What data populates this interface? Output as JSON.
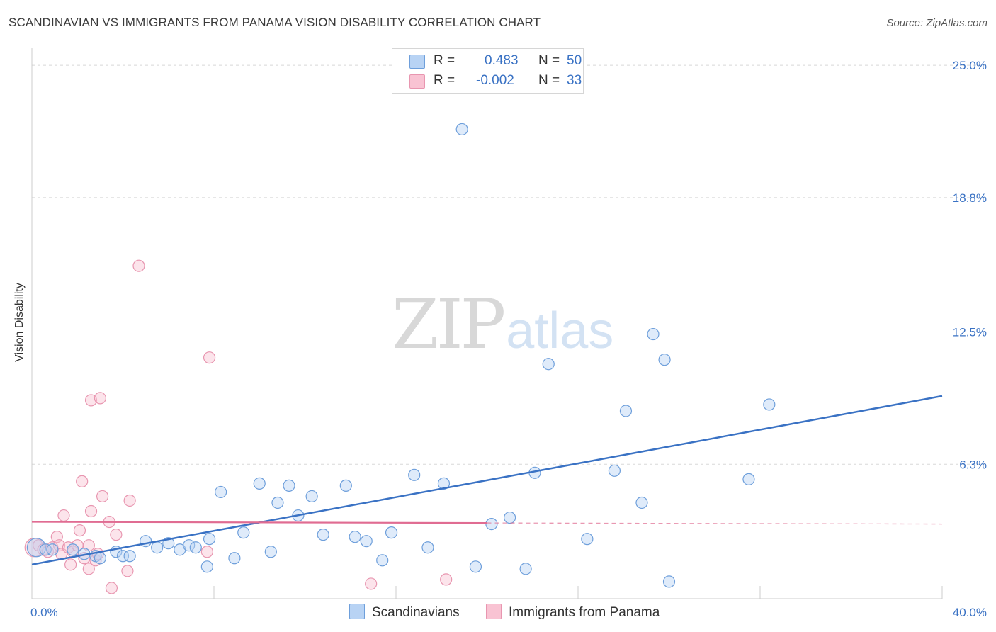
{
  "title": "SCANDINAVIAN VS IMMIGRANTS FROM PANAMA VISION DISABILITY CORRELATION CHART",
  "source": "Source: ZipAtlas.com",
  "watermark": {
    "zip": "ZIP",
    "atlas": "atlas"
  },
  "legend": {
    "r_label": "R =",
    "n_label": "N =",
    "rows": [
      {
        "r": "0.483",
        "n": "50",
        "fill": "#b8d3f4",
        "stroke": "#6e9fdb"
      },
      {
        "r": "-0.002",
        "n": "33",
        "fill": "#f9c3d3",
        "stroke": "#e896b0"
      }
    ]
  },
  "bottom_legend": [
    "Scandinavians",
    "Immigrants from Panama"
  ],
  "chart_data": {
    "type": "scatter",
    "title": "SCANDINAVIAN VS IMMIGRANTS FROM PANAMA VISION DISABILITY CORRELATION CHART",
    "xlabel": "",
    "ylabel": "Vision Disability",
    "xlim": [
      0,
      40
    ],
    "ylim": [
      0,
      25.8
    ],
    "x_tick_labels": [
      {
        "value": 0,
        "label": "0.0%"
      },
      {
        "value": 40,
        "label": "40.0%"
      }
    ],
    "y_tick_labels": [
      {
        "value": 6.3,
        "label": "6.3%"
      },
      {
        "value": 12.5,
        "label": "12.5%"
      },
      {
        "value": 18.8,
        "label": "18.8%"
      },
      {
        "value": 25.0,
        "label": "25.0%"
      }
    ],
    "x_ticks": [
      0,
      4,
      8,
      12,
      16,
      20,
      24,
      28,
      32,
      36,
      40
    ],
    "grid": true,
    "colors": {
      "blue": "#3a72c4",
      "blue_fill": "#b8d3f4",
      "blue_stroke": "#6e9fdb",
      "pink": "#e06c92",
      "pink_fill": "#f9c3d3",
      "pink_stroke": "#e896b0",
      "grid": "#d8d8d8",
      "tick_text": "#3a72c4"
    },
    "series": [
      {
        "name": "Scandinavians",
        "color": "#6e9fdb",
        "trendline": {
          "x": [
            0,
            40
          ],
          "y": [
            1.6,
            9.5
          ],
          "style": "solid"
        },
        "points": [
          {
            "x": 0.2,
            "y": 2.4,
            "big": true
          },
          {
            "x": 0.6,
            "y": 2.3
          },
          {
            "x": 0.9,
            "y": 2.3
          },
          {
            "x": 1.8,
            "y": 2.3
          },
          {
            "x": 2.3,
            "y": 2.1
          },
          {
            "x": 2.8,
            "y": 2.0
          },
          {
            "x": 3.0,
            "y": 1.9
          },
          {
            "x": 3.7,
            "y": 2.2
          },
          {
            "x": 4.0,
            "y": 2.0
          },
          {
            "x": 4.3,
            "y": 2.0
          },
          {
            "x": 5.0,
            "y": 2.7
          },
          {
            "x": 5.5,
            "y": 2.4
          },
          {
            "x": 6.0,
            "y": 2.6
          },
          {
            "x": 6.5,
            "y": 2.3
          },
          {
            "x": 6.9,
            "y": 2.5
          },
          {
            "x": 7.2,
            "y": 2.4
          },
          {
            "x": 7.7,
            "y": 1.5
          },
          {
            "x": 7.8,
            "y": 2.8
          },
          {
            "x": 8.3,
            "y": 5.0
          },
          {
            "x": 8.9,
            "y": 1.9
          },
          {
            "x": 9.3,
            "y": 3.1
          },
          {
            "x": 10.0,
            "y": 5.4
          },
          {
            "x": 10.5,
            "y": 2.2
          },
          {
            "x": 10.8,
            "y": 4.5
          },
          {
            "x": 11.3,
            "y": 5.3
          },
          {
            "x": 11.7,
            "y": 3.9
          },
          {
            "x": 12.3,
            "y": 4.8
          },
          {
            "x": 12.8,
            "y": 3.0
          },
          {
            "x": 13.8,
            "y": 5.3
          },
          {
            "x": 14.2,
            "y": 2.9
          },
          {
            "x": 14.7,
            "y": 2.7
          },
          {
            "x": 15.4,
            "y": 1.8
          },
          {
            "x": 15.8,
            "y": 3.1
          },
          {
            "x": 16.8,
            "y": 5.8
          },
          {
            "x": 17.4,
            "y": 2.4
          },
          {
            "x": 18.1,
            "y": 5.4
          },
          {
            "x": 18.9,
            "y": 22.0
          },
          {
            "x": 19.5,
            "y": 1.5
          },
          {
            "x": 20.2,
            "y": 3.5
          },
          {
            "x": 21.0,
            "y": 3.8
          },
          {
            "x": 21.7,
            "y": 1.4
          },
          {
            "x": 22.1,
            "y": 5.9
          },
          {
            "x": 22.7,
            "y": 11.0
          },
          {
            "x": 24.4,
            "y": 2.8
          },
          {
            "x": 25.6,
            "y": 6.0
          },
          {
            "x": 26.1,
            "y": 8.8
          },
          {
            "x": 26.8,
            "y": 4.5
          },
          {
            "x": 27.3,
            "y": 12.4
          },
          {
            "x": 27.8,
            "y": 11.2
          },
          {
            "x": 28.0,
            "y": 0.8
          },
          {
            "x": 31.5,
            "y": 5.6
          },
          {
            "x": 32.4,
            "y": 9.1
          }
        ]
      },
      {
        "name": "Immigrants from Panama",
        "color": "#e896b0",
        "trendline": {
          "x": [
            0,
            20
          ],
          "y": [
            3.6,
            3.55
          ],
          "style": "solid",
          "dashed_extension": {
            "x": [
              20,
              40
            ],
            "y": [
              3.55,
              3.5
            ]
          }
        },
        "points": [
          {
            "x": 0.1,
            "y": 2.4,
            "big": true
          },
          {
            "x": 0.3,
            "y": 2.5
          },
          {
            "x": 0.5,
            "y": 2.3
          },
          {
            "x": 0.7,
            "y": 2.2
          },
          {
            "x": 0.9,
            "y": 2.4
          },
          {
            "x": 1.1,
            "y": 2.9
          },
          {
            "x": 1.2,
            "y": 2.5
          },
          {
            "x": 1.3,
            "y": 2.1
          },
          {
            "x": 1.4,
            "y": 3.9
          },
          {
            "x": 1.6,
            "y": 2.4
          },
          {
            "x": 1.7,
            "y": 1.6
          },
          {
            "x": 1.8,
            "y": 2.2
          },
          {
            "x": 2.0,
            "y": 2.5
          },
          {
            "x": 2.1,
            "y": 3.2
          },
          {
            "x": 2.3,
            "y": 1.9
          },
          {
            "x": 2.5,
            "y": 1.4
          },
          {
            "x": 2.2,
            "y": 5.5
          },
          {
            "x": 2.5,
            "y": 2.5
          },
          {
            "x": 2.6,
            "y": 9.3
          },
          {
            "x": 2.6,
            "y": 4.1
          },
          {
            "x": 2.8,
            "y": 1.8
          },
          {
            "x": 2.9,
            "y": 2.1
          },
          {
            "x": 3.0,
            "y": 9.4
          },
          {
            "x": 3.1,
            "y": 4.8
          },
          {
            "x": 3.4,
            "y": 3.6
          },
          {
            "x": 3.5,
            "y": 0.5
          },
          {
            "x": 3.7,
            "y": 3.0
          },
          {
            "x": 4.2,
            "y": 1.3
          },
          {
            "x": 4.3,
            "y": 4.6
          },
          {
            "x": 4.7,
            "y": 15.6
          },
          {
            "x": 7.7,
            "y": 2.2
          },
          {
            "x": 7.8,
            "y": 11.3
          },
          {
            "x": 14.9,
            "y": 0.7
          },
          {
            "x": 18.2,
            "y": 0.9
          }
        ]
      }
    ]
  }
}
